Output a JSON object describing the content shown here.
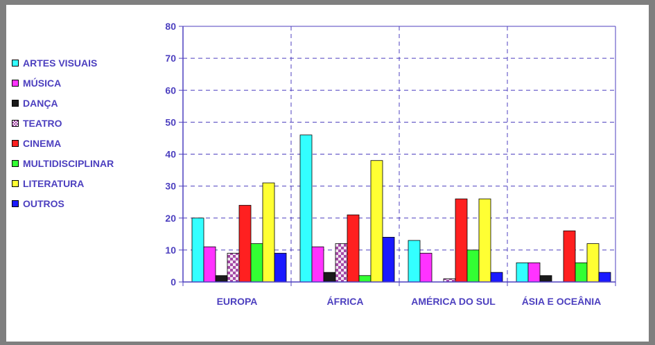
{
  "chart_data": {
    "type": "bar",
    "title": "",
    "xlabel": "",
    "ylabel": "",
    "ylim": [
      0,
      80
    ],
    "yticks": [
      0,
      10,
      20,
      30,
      40,
      50,
      60,
      70,
      80
    ],
    "grid": true,
    "legend_position": "left",
    "categories": [
      "EUROPA",
      "ÁFRICA",
      "AMÉRICA DO SUL",
      "ÁSIA E OCEÂNIA"
    ],
    "series": [
      {
        "name": "ARTES VISUAIS",
        "color": "#33ffff",
        "values": [
          20,
          46,
          13,
          6
        ]
      },
      {
        "name": "MÚSICA",
        "color": "#ff33ff",
        "values": [
          11,
          11,
          9,
          6
        ]
      },
      {
        "name": "DANÇA",
        "color": "#1a1a1a",
        "values": [
          2,
          3,
          0,
          2
        ]
      },
      {
        "name": "TEATRO",
        "color": "#a54aa6",
        "pattern": "checker",
        "values": [
          9,
          12,
          1,
          0
        ]
      },
      {
        "name": "CINEMA",
        "color": "#ff2020",
        "values": [
          24,
          21,
          26,
          16
        ]
      },
      {
        "name": "MULTIDISCIPLINAR",
        "color": "#33ff33",
        "values": [
          12,
          2,
          10,
          6
        ]
      },
      {
        "name": "LITERATURA",
        "color": "#ffff33",
        "values": [
          31,
          38,
          26,
          12
        ]
      },
      {
        "name": "OUTROS",
        "color": "#1a1aff",
        "values": [
          9,
          14,
          3,
          3
        ]
      }
    ],
    "axis_color": "#4c3fbf",
    "gridline_color": "#4c3fbf"
  }
}
